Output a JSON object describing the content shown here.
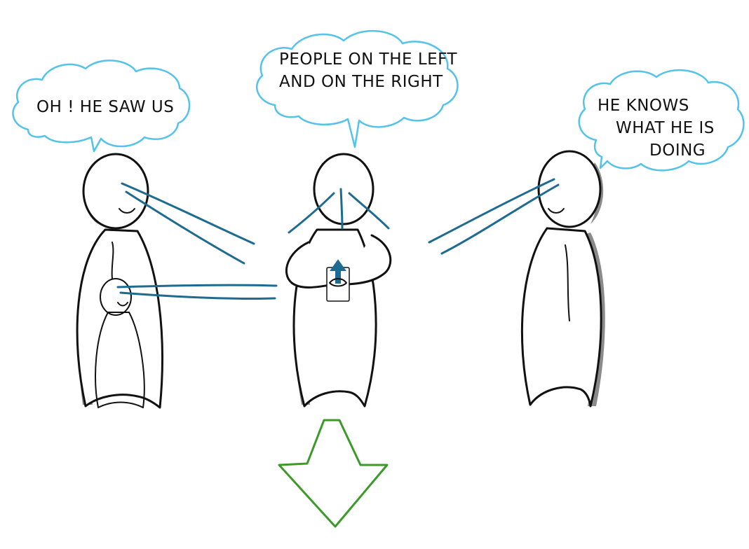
{
  "bubbles": {
    "left": {
      "lines": [
        "OH ! HE SAW US"
      ]
    },
    "center": {
      "lines": [
        "PEOPLE ON THE LEFT",
        "AND ON THE RIGHT"
      ]
    },
    "right": {
      "lines": [
        "HE KNOWS",
        "WHAT HE IS",
        "DOING"
      ]
    }
  },
  "colors": {
    "bubble_outline": "#54c3ea",
    "gaze_lines": "#1e6b91",
    "figure_outline": "#111111",
    "figure_shadow": "#8a8a8a",
    "arrow": "#3c9a2a"
  },
  "icons": {
    "held_item": "phone-with-up-arrow-icon",
    "direction": "down-arrow-icon"
  }
}
